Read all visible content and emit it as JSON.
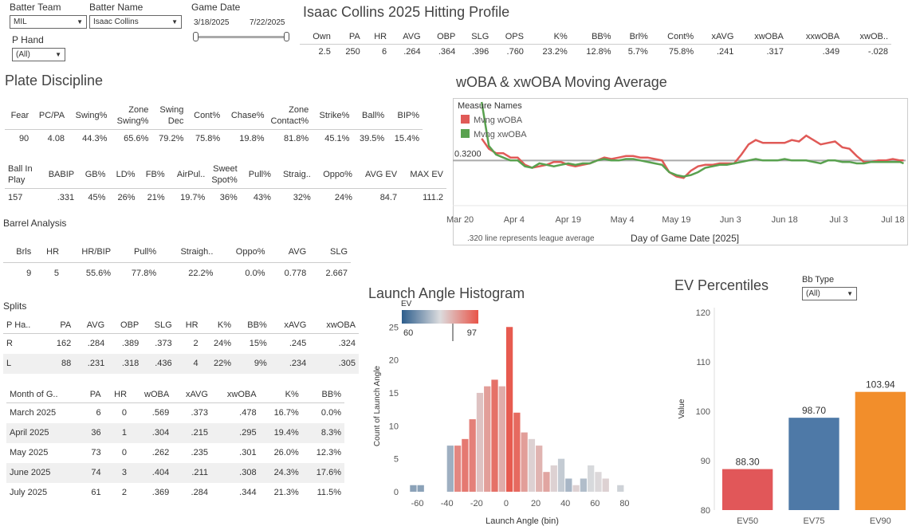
{
  "filters": {
    "batter_team_label": "Batter Team",
    "batter_team_value": "MIL",
    "batter_name_label": "Batter Name",
    "batter_name_value": "Isaac Collins",
    "game_date_label": "Game Date",
    "date_start": "3/18/2025",
    "date_end": "7/22/2025",
    "p_hand_label": "P Hand",
    "p_hand_value": "(All)"
  },
  "profile": {
    "title": "Isaac Collins 2025 Hitting Profile",
    "headers": [
      "Own",
      "PA",
      "HR",
      "AVG",
      "OBP",
      "SLG",
      "OPS",
      "K%",
      "BB%",
      "Brl%",
      "Cont%",
      "xAVG",
      "xwOBA",
      "xxwOBA",
      "xwOB.."
    ],
    "values": [
      "2.5",
      "250",
      "6",
      ".264",
      ".364",
      ".396",
      ".760",
      "23.2%",
      "12.8%",
      "5.7%",
      "75.8%",
      ".241",
      ".317",
      ".349",
      "-.028"
    ]
  },
  "plate_discipline": {
    "title": "Plate Discipline",
    "row1_headers": [
      "Fear",
      "PC/PA",
      "Swing%",
      "Zone Swing%",
      "Swing Dec",
      "Cont%",
      "Chase%",
      "Zone Contact%",
      "Strike%",
      "Ball%",
      "BIP%"
    ],
    "row1_values": [
      "90",
      "4.08",
      "44.3%",
      "65.6%",
      "79.2%",
      "75.8%",
      "19.8%",
      "81.8%",
      "45.1%",
      "39.5%",
      "15.4%"
    ],
    "row2_headers": [
      "Ball In Play",
      "BABIP",
      "GB%",
      "LD%",
      "FB%",
      "AirPul..",
      "Sweet Spot%",
      "Pull%",
      "Straig..",
      "Oppo%",
      "AVG EV",
      "MAX EV"
    ],
    "row2_values": [
      "157",
      ".331",
      "45%",
      "26%",
      "21%",
      "19.7%",
      "36%",
      "43%",
      "32%",
      "24%",
      "84.7",
      "111.2"
    ]
  },
  "barrel": {
    "title": "Barrel Analysis",
    "headers": [
      "Brls",
      "HR",
      "HR/BIP",
      "Pull%",
      "Straigh..",
      "Oppo%",
      "AVG",
      "SLG"
    ],
    "values": [
      "9",
      "5",
      "55.6%",
      "77.8%",
      "22.2%",
      "0.0%",
      "0.778",
      "2.667"
    ]
  },
  "splits": {
    "title": "Splits",
    "headers": [
      "P Ha..",
      "PA",
      "AVG",
      "OBP",
      "SLG",
      "HR",
      "K%",
      "BB%",
      "xAVG",
      "xwOBA"
    ],
    "rows": [
      [
        "R",
        "162",
        ".284",
        ".389",
        ".373",
        "2",
        "24%",
        "15%",
        ".245",
        ".324"
      ],
      [
        "L",
        "88",
        ".231",
        ".318",
        ".436",
        "4",
        "22%",
        "9%",
        ".234",
        ".305"
      ]
    ]
  },
  "monthly": {
    "headers": [
      "Month of G..",
      "PA",
      "HR",
      "wOBA",
      "xAVG",
      "xwOBA",
      "K%",
      "BB%"
    ],
    "rows": [
      [
        "March 2025",
        "6",
        "0",
        ".569",
        ".373",
        ".478",
        "16.7%",
        "0.0%"
      ],
      [
        "April 2025",
        "36",
        "1",
        ".304",
        ".215",
        ".295",
        "19.4%",
        "8.3%"
      ],
      [
        "May 2025",
        "73",
        "0",
        ".262",
        ".235",
        ".301",
        "26.0%",
        "12.3%"
      ],
      [
        "June 2025",
        "74",
        "3",
        ".404",
        ".211",
        ".308",
        "24.3%",
        "17.6%"
      ],
      [
        "July 2025",
        "61",
        "2",
        ".369",
        ".284",
        ".344",
        "21.3%",
        "11.5%"
      ]
    ]
  },
  "chart_data": [
    {
      "type": "line",
      "title": "wOBA & xwOBA Moving Average",
      "legend_title": "Measure Names",
      "xlabel": "Day of Game Date [2025]",
      "note": ".320 line represents league average",
      "reference_line": 0.32,
      "reference_label": "0.3200",
      "ylim": [
        0.16,
        0.52
      ],
      "xlim": [
        0,
        126
      ],
      "x_tick_labels": [
        "Mar 20",
        "Apr 4",
        "Apr 19",
        "May 4",
        "May 19",
        "Jun 3",
        "Jun 18",
        "Jul 3",
        "Jul 18"
      ],
      "x_tick_positions": [
        2,
        17,
        32,
        47,
        62,
        77,
        92,
        107,
        122
      ],
      "series": [
        {
          "name": "Mvng wOBA",
          "color": "#e05a57",
          "x": [
            8,
            10,
            12,
            14,
            16,
            18,
            20,
            22,
            24,
            26,
            28,
            30,
            32,
            34,
            36,
            38,
            40,
            42,
            44,
            46,
            48,
            50,
            52,
            54,
            56,
            58,
            60,
            62,
            64,
            66,
            68,
            70,
            72,
            74,
            76,
            78,
            80,
            82,
            84,
            86,
            88,
            90,
            92,
            94,
            96,
            98,
            100,
            102,
            104,
            106,
            108,
            110,
            112,
            114,
            116,
            118,
            120,
            122,
            124,
            125
          ],
          "y": [
            0.395,
            0.36,
            0.345,
            0.345,
            0.33,
            0.33,
            0.305,
            0.295,
            0.3,
            0.305,
            0.315,
            0.315,
            0.305,
            0.3,
            0.305,
            0.31,
            0.32,
            0.33,
            0.325,
            0.33,
            0.335,
            0.335,
            0.33,
            0.33,
            0.325,
            0.32,
            0.28,
            0.265,
            0.26,
            0.285,
            0.3,
            0.305,
            0.305,
            0.31,
            0.31,
            0.31,
            0.34,
            0.375,
            0.39,
            0.38,
            0.38,
            0.38,
            0.38,
            0.39,
            0.385,
            0.405,
            0.39,
            0.375,
            0.38,
            0.385,
            0.365,
            0.36,
            0.335,
            0.315,
            0.315,
            0.32,
            0.32,
            0.325,
            0.32,
            0.32
          ]
        },
        {
          "name": "Mvng xwOBA",
          "color": "#59a14f",
          "x": [
            8,
            10,
            12,
            14,
            16,
            18,
            20,
            22,
            24,
            26,
            28,
            30,
            32,
            34,
            36,
            38,
            40,
            42,
            44,
            46,
            48,
            50,
            52,
            54,
            56,
            58,
            60,
            62,
            64,
            66,
            68,
            70,
            72,
            74,
            76,
            78,
            80,
            82,
            84,
            86,
            88,
            90,
            92,
            94,
            96,
            98,
            100,
            102,
            104,
            106,
            108,
            110,
            112,
            114,
            116,
            118,
            120,
            122,
            124,
            125
          ],
          "y": [
            0.52,
            0.37,
            0.34,
            0.33,
            0.32,
            0.32,
            0.3,
            0.295,
            0.31,
            0.305,
            0.3,
            0.305,
            0.31,
            0.305,
            0.31,
            0.31,
            0.32,
            0.325,
            0.32,
            0.32,
            0.325,
            0.325,
            0.32,
            0.315,
            0.31,
            0.305,
            0.28,
            0.27,
            0.265,
            0.27,
            0.28,
            0.295,
            0.3,
            0.305,
            0.305,
            0.31,
            0.315,
            0.32,
            0.325,
            0.32,
            0.32,
            0.32,
            0.325,
            0.32,
            0.32,
            0.32,
            0.315,
            0.31,
            0.32,
            0.32,
            0.315,
            0.315,
            0.31,
            0.31,
            0.315,
            0.315,
            0.315,
            0.315,
            0.315,
            0.31
          ]
        }
      ]
    },
    {
      "type": "bar",
      "title": "Launch Angle Histogram",
      "xlabel": "Launch Angle (bin)",
      "ylabel": "Count of Launch Angle",
      "legend_title": "EV",
      "color_range": [
        60,
        97
      ],
      "x_ticks": [
        -60,
        -40,
        -20,
        0,
        20,
        40,
        60,
        80
      ],
      "y_ticks": [
        0,
        5,
        10,
        15,
        20,
        25
      ],
      "ylim": [
        0,
        26
      ],
      "bin_width": 5,
      "bins": [
        -65,
        -60,
        -40,
        -35,
        -30,
        -25,
        -20,
        -15,
        -10,
        -5,
        0,
        5,
        10,
        15,
        20,
        25,
        30,
        35,
        40,
        45,
        50,
        55,
        60,
        65,
        75
      ],
      "values": [
        1,
        1,
        7,
        7,
        8,
        11,
        15,
        16,
        17,
        16,
        25,
        12,
        9,
        8,
        7,
        3,
        4,
        5,
        2,
        1,
        2,
        4,
        3,
        2,
        1
      ],
      "ev": [
        70,
        70,
        72,
        90,
        92,
        91,
        82,
        87,
        93,
        85,
        96,
        94,
        87,
        80,
        84,
        86,
        80,
        76,
        73,
        80,
        74,
        78,
        79,
        80,
        77
      ]
    },
    {
      "type": "bar",
      "title": "EV Percentiles",
      "ylabel": "Value",
      "categories": [
        "EV50",
        "EV75",
        "EV90"
      ],
      "values": [
        88.3,
        98.7,
        103.94
      ],
      "labels": [
        "88.30",
        "98.70",
        "103.94"
      ],
      "colors": [
        "#e15759",
        "#4e79a7",
        "#f28e2b"
      ],
      "ylim": [
        80,
        121
      ],
      "y_ticks": [
        80,
        90,
        100,
        110,
        120
      ],
      "filter_label": "Bb Type",
      "filter_value": "(All)"
    }
  ]
}
